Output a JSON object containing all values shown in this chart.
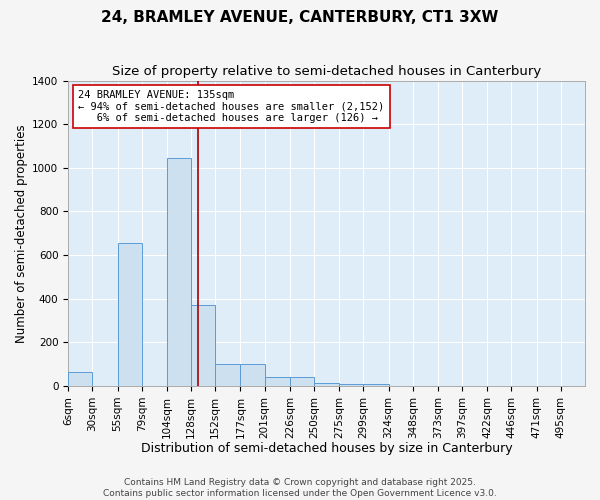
{
  "title": "24, BRAMLEY AVENUE, CANTERBURY, CT1 3XW",
  "subtitle": "Size of property relative to semi-detached houses in Canterbury",
  "xlabel": "Distribution of semi-detached houses by size in Canterbury",
  "ylabel": "Number of semi-detached properties",
  "bar_labels": [
    "6sqm",
    "30sqm",
    "55sqm",
    "79sqm",
    "104sqm",
    "128sqm",
    "152sqm",
    "177sqm",
    "201sqm",
    "226sqm",
    "250sqm",
    "275sqm",
    "299sqm",
    "324sqm",
    "348sqm",
    "373sqm",
    "397sqm",
    "422sqm",
    "446sqm",
    "471sqm",
    "495sqm"
  ],
  "bar_values": [
    65,
    0,
    655,
    0,
    1045,
    370,
    100,
    100,
    40,
    40,
    12,
    10,
    10,
    0,
    0,
    0,
    0,
    0,
    0,
    0,
    0
  ],
  "bin_edges": [
    6,
    30,
    55,
    79,
    104,
    128,
    152,
    177,
    201,
    226,
    250,
    275,
    299,
    324,
    348,
    373,
    397,
    422,
    446,
    471,
    495,
    519
  ],
  "bar_color_fill": "#cce0f0",
  "bar_color_edge": "#5b9bd5",
  "property_line_x": 135,
  "property_line_color": "#aa0000",
  "annotation_text": "24 BRAMLEY AVENUE: 135sqm\n← 94% of semi-detached houses are smaller (2,152)\n   6% of semi-detached houses are larger (126) →",
  "annotation_box_facecolor": "#ffffff",
  "annotation_box_edgecolor": "#cc0000",
  "ylim": [
    0,
    1400
  ],
  "yticks": [
    0,
    200,
    400,
    600,
    800,
    1000,
    1200,
    1400
  ],
  "plot_bg_color": "#deedf8",
  "fig_bg_color": "#f5f5f5",
  "grid_color": "#ffffff",
  "footer_text": "Contains HM Land Registry data © Crown copyright and database right 2025.\nContains public sector information licensed under the Open Government Licence v3.0.",
  "title_fontsize": 11,
  "subtitle_fontsize": 9.5,
  "xlabel_fontsize": 9,
  "ylabel_fontsize": 8.5,
  "tick_fontsize": 7.5,
  "annotation_fontsize": 7.5,
  "footer_fontsize": 6.5
}
